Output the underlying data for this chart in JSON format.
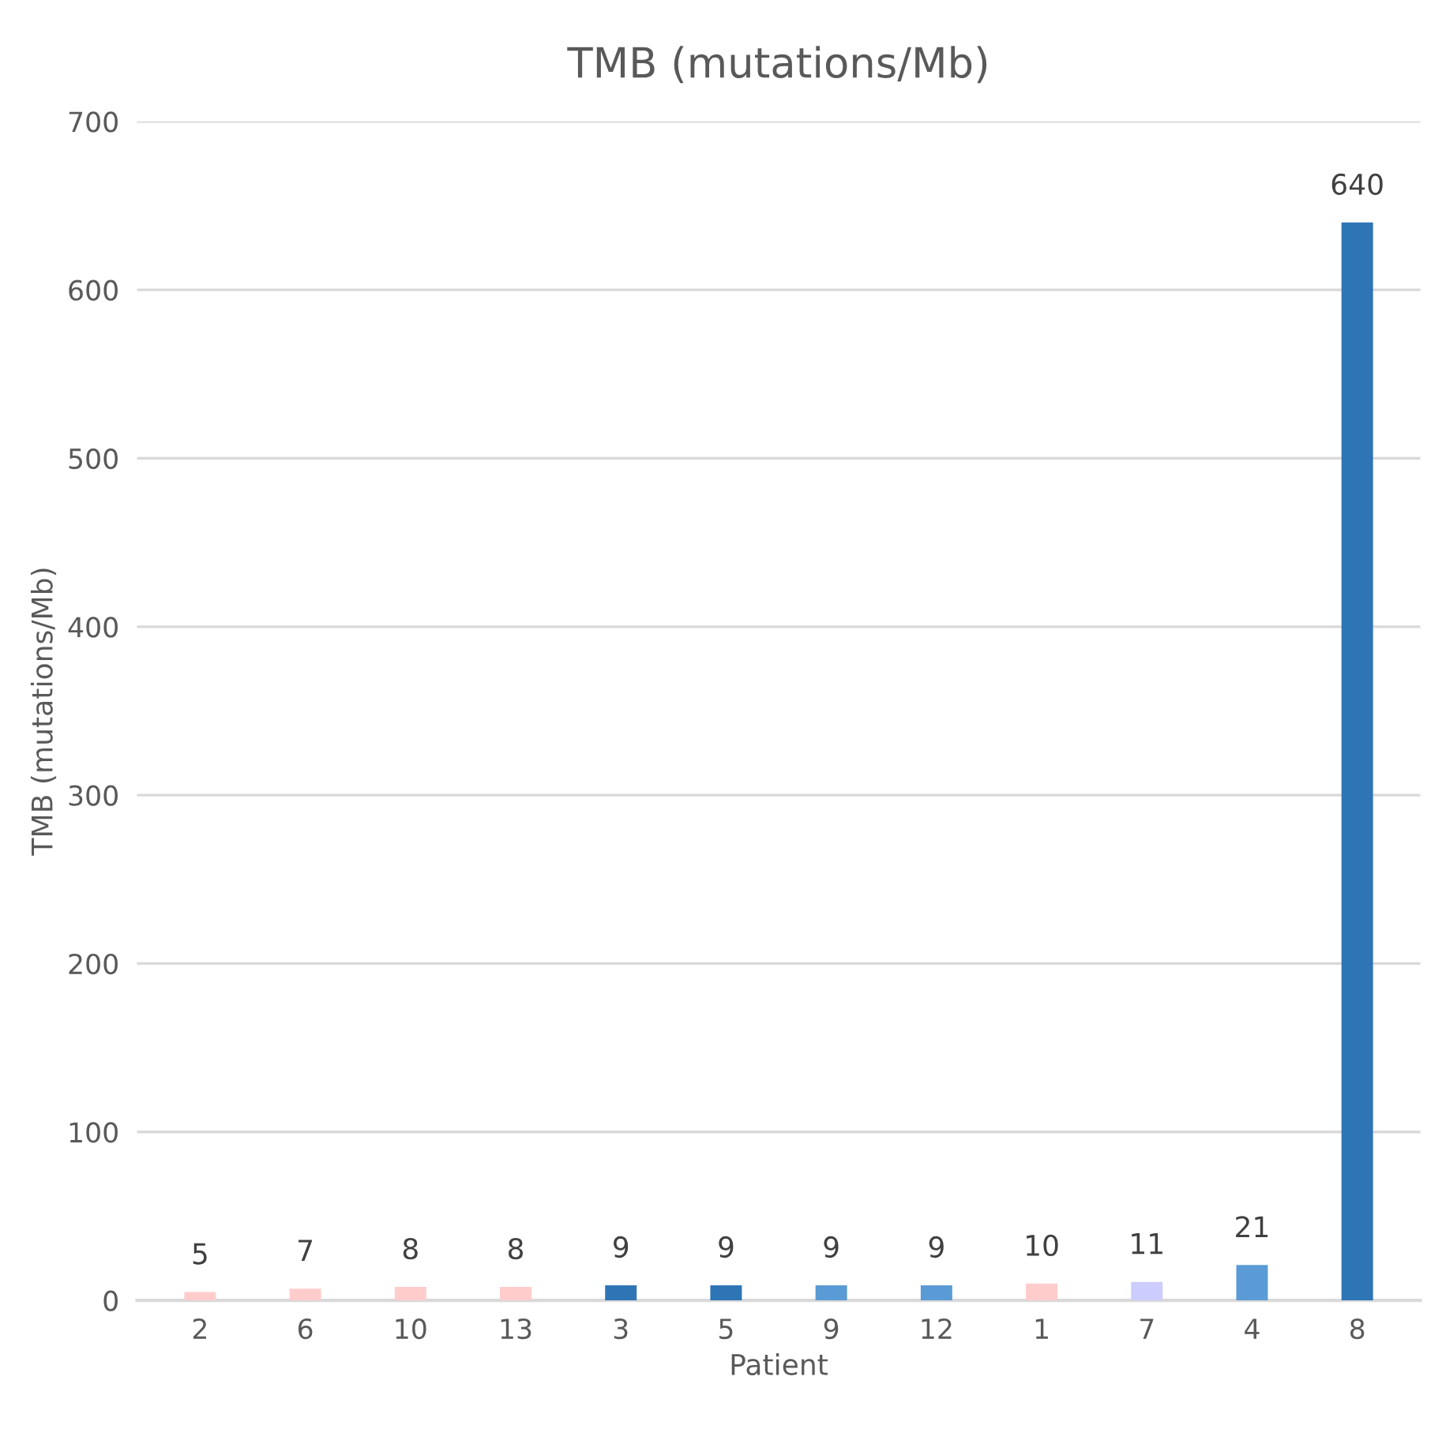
{
  "chart_data": {
    "type": "bar",
    "title": "TMB (mutations/Mb)",
    "xlabel": "Patient",
    "ylabel": "TMB (mutations/Mb)",
    "categories": [
      "2",
      "6",
      "10",
      "13",
      "3",
      "5",
      "9",
      "12",
      "1",
      "7",
      "4",
      "8"
    ],
    "values": [
      5,
      7,
      8,
      8,
      9,
      9,
      9,
      9,
      10,
      11,
      21,
      640
    ],
    "colors": [
      "#ffcccc",
      "#ffcccc",
      "#ffcccc",
      "#ffcccc",
      "#2e75b6",
      "#2e75b6",
      "#5b9bd5",
      "#5b9bd5",
      "#ffcccc",
      "#ccccff",
      "#5b9bd5",
      "#2e75b6"
    ],
    "ylim": [
      0,
      700
    ],
    "yticks": [
      0,
      100,
      200,
      300,
      400,
      500,
      600,
      700
    ],
    "grid": "y",
    "data_labels": true
  }
}
